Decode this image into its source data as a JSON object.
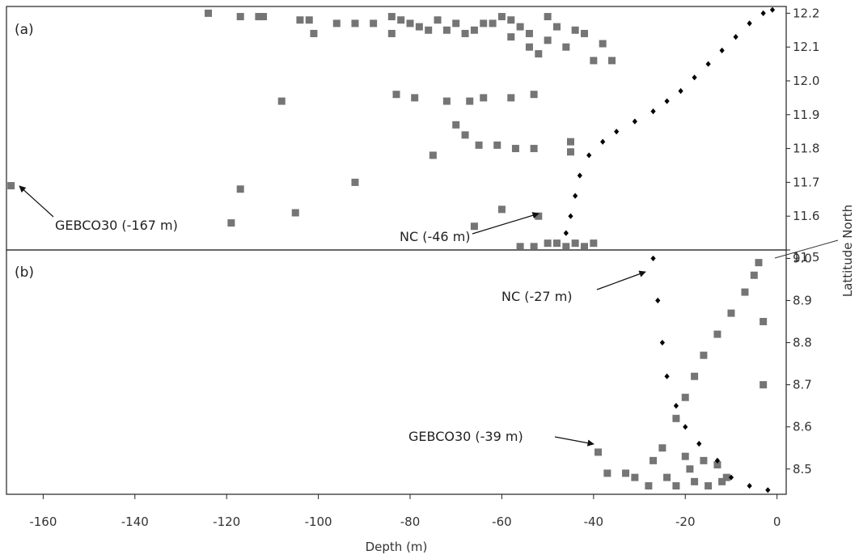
{
  "chart_data": [
    {
      "type": "scatter",
      "panel_label": "(a)",
      "xlabel": "Depth (m)",
      "ylabel": "Lattitude North",
      "xlim": [
        -168,
        2
      ],
      "ylim": [
        11.5,
        12.22
      ],
      "y_ticks": [
        "11.5",
        "11.6",
        "11.7",
        "11.8",
        "11.9",
        "12.0",
        "12.1",
        "12.2"
      ],
      "grid": false,
      "series": [
        {
          "name": "GEBCO30",
          "marker": "square",
          "color": "#757575",
          "points": [
            [
              -167,
              11.69
            ],
            [
              -124,
              12.2
            ],
            [
              -117,
              12.19
            ],
            [
              -113,
              12.19
            ],
            [
              -112,
              12.19
            ],
            [
              -104,
              12.18
            ],
            [
              -102,
              12.18
            ],
            [
              -101,
              12.14
            ],
            [
              -96,
              12.17
            ],
            [
              -92,
              12.17
            ],
            [
              -88,
              12.17
            ],
            [
              -84,
              12.19
            ],
            [
              -84,
              12.14
            ],
            [
              -82,
              12.18
            ],
            [
              -80,
              12.17
            ],
            [
              -78,
              12.16
            ],
            [
              -76,
              12.15
            ],
            [
              -74,
              12.18
            ],
            [
              -72,
              12.15
            ],
            [
              -70,
              12.17
            ],
            [
              -68,
              12.14
            ],
            [
              -66,
              12.15
            ],
            [
              -64,
              12.17
            ],
            [
              -62,
              12.17
            ],
            [
              -60,
              12.19
            ],
            [
              -58,
              12.18
            ],
            [
              -58,
              12.13
            ],
            [
              -56,
              12.16
            ],
            [
              -54,
              12.14
            ],
            [
              -54,
              12.1
            ],
            [
              -52,
              12.08
            ],
            [
              -50,
              12.19
            ],
            [
              -50,
              12.12
            ],
            [
              -48,
              12.16
            ],
            [
              -46,
              12.1
            ],
            [
              -44,
              12.15
            ],
            [
              -42,
              12.14
            ],
            [
              -40,
              12.06
            ],
            [
              -38,
              12.11
            ],
            [
              -36,
              12.06
            ],
            [
              -108,
              11.94
            ],
            [
              -83,
              11.96
            ],
            [
              -79,
              11.95
            ],
            [
              -72,
              11.94
            ],
            [
              -67,
              11.94
            ],
            [
              -64,
              11.95
            ],
            [
              -58,
              11.95
            ],
            [
              -53,
              11.96
            ],
            [
              -70,
              11.87
            ],
            [
              -68,
              11.84
            ],
            [
              -65,
              11.81
            ],
            [
              -61,
              11.81
            ],
            [
              -57,
              11.8
            ],
            [
              -53,
              11.8
            ],
            [
              -75,
              11.78
            ],
            [
              -45,
              11.82
            ],
            [
              -45,
              11.79
            ],
            [
              -117,
              11.68
            ],
            [
              -92,
              11.7
            ],
            [
              -105,
              11.61
            ],
            [
              -119,
              11.58
            ],
            [
              -60,
              11.62
            ],
            [
              -66,
              11.57
            ],
            [
              -52,
              11.6
            ],
            [
              -56,
              11.51
            ],
            [
              -53,
              11.51
            ],
            [
              -50,
              11.52
            ],
            [
              -48,
              11.52
            ],
            [
              -46,
              11.51
            ],
            [
              -44,
              11.52
            ],
            [
              -42,
              11.51
            ],
            [
              -40,
              11.52
            ]
          ]
        },
        {
          "name": "NC",
          "marker": "diamond",
          "color": "#000000",
          "points": [
            [
              -46,
              11.55
            ],
            [
              -45,
              11.6
            ],
            [
              -44,
              11.66
            ],
            [
              -43,
              11.72
            ],
            [
              -41,
              11.78
            ],
            [
              -38,
              11.82
            ],
            [
              -35,
              11.85
            ],
            [
              -31,
              11.88
            ],
            [
              -27,
              11.91
            ],
            [
              -24,
              11.94
            ],
            [
              -21,
              11.97
            ],
            [
              -18,
              12.01
            ],
            [
              -15,
              12.05
            ],
            [
              -12,
              12.09
            ],
            [
              -9,
              12.13
            ],
            [
              -6,
              12.17
            ],
            [
              -3,
              12.2
            ],
            [
              -1,
              12.21
            ]
          ]
        }
      ]
    },
    {
      "type": "scatter",
      "panel_label": "(b)",
      "xlabel": "Depth (m)",
      "ylabel": "Lattitude North",
      "xlim": [
        -168,
        2
      ],
      "ylim": [
        8.44,
        9.02
      ],
      "x_ticks": [
        "-160",
        "-140",
        "-120",
        "-100",
        "-80",
        "-60",
        "-40",
        "-20",
        "0"
      ],
      "y_ticks": [
        "8.5",
        "8.6",
        "8.7",
        "8.8",
        "8.9",
        "9.0"
      ],
      "grid": false,
      "series": [
        {
          "name": "GEBCO30",
          "marker": "square",
          "color": "#757575",
          "points": [
            [
              -39,
              8.54
            ],
            [
              -37,
              8.49
            ],
            [
              -33,
              8.49
            ],
            [
              -31,
              8.48
            ],
            [
              -28,
              8.46
            ],
            [
              -27,
              8.52
            ],
            [
              -25,
              8.55
            ],
            [
              -24,
              8.48
            ],
            [
              -22,
              8.46
            ],
            [
              -20,
              8.53
            ],
            [
              -19,
              8.5
            ],
            [
              -18,
              8.47
            ],
            [
              -16,
              8.52
            ],
            [
              -15,
              8.46
            ],
            [
              -13,
              8.51
            ],
            [
              -12,
              8.47
            ],
            [
              -11,
              8.48
            ],
            [
              -22,
              8.62
            ],
            [
              -20,
              8.67
            ],
            [
              -18,
              8.72
            ],
            [
              -16,
              8.77
            ],
            [
              -13,
              8.82
            ],
            [
              -10,
              8.87
            ],
            [
              -7,
              8.92
            ],
            [
              -5,
              8.96
            ],
            [
              -4,
              8.99
            ],
            [
              -3,
              8.85
            ],
            [
              -3,
              8.7
            ]
          ]
        },
        {
          "name": "NC",
          "marker": "diamond",
          "color": "#000000",
          "points": [
            [
              -27,
              9.0
            ],
            [
              -26,
              8.9
            ],
            [
              -25,
              8.8
            ],
            [
              -24,
              8.72
            ],
            [
              -22,
              8.65
            ],
            [
              -20,
              8.6
            ],
            [
              -17,
              8.56
            ],
            [
              -13,
              8.52
            ],
            [
              -10,
              8.48
            ],
            [
              -6,
              8.46
            ],
            [
              -2,
              8.45
            ]
          ]
        }
      ]
    }
  ],
  "annotations": {
    "a_gebco": "GEBCO30 (-167 m)",
    "a_nc": "NC (-46 m)",
    "b_nc": "NC (-27 m)",
    "b_gebco": "GEBCO30 (-39 m)"
  }
}
